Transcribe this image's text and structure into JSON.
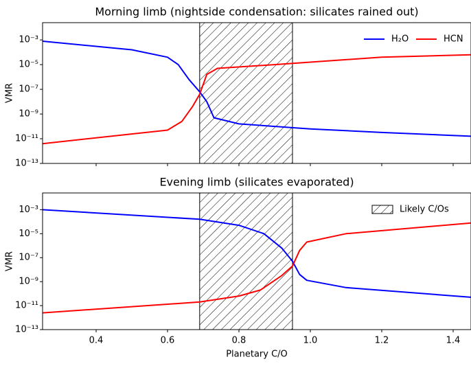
{
  "chart_data": [
    {
      "type": "line",
      "title": "Morning limb (nightside condensation: silicates rained out)",
      "ylabel": "VMR",
      "xlim": [
        0.25,
        1.45
      ],
      "xticks": [
        0.4,
        0.6,
        0.8,
        1.0,
        1.2,
        1.4
      ],
      "show_xtick_labels": false,
      "ylim": [
        1e-13,
        0.025
      ],
      "log_y": true,
      "yticks": [
        {
          "value": 1e-13,
          "label": "10⁻¹³"
        },
        {
          "value": 1e-11,
          "label": "10⁻¹¹"
        },
        {
          "value": 1e-09,
          "label": "10⁻⁹"
        },
        {
          "value": 1e-07,
          "label": "10⁻⁷"
        },
        {
          "value": 1e-05,
          "label": "10⁻⁵"
        },
        {
          "value": 0.001,
          "label": "10⁻³"
        }
      ],
      "shade": {
        "xrange": [
          0.69,
          0.95
        ]
      },
      "legend": "upper right",
      "series": [
        {
          "name": "H₂O",
          "color": "#0000ff",
          "x": [
            0.25,
            0.5,
            0.6,
            0.63,
            0.66,
            0.69,
            0.71,
            0.73,
            0.8,
            1.0,
            1.2,
            1.45
          ],
          "values": [
            0.00079,
            0.00016,
            4e-05,
            1e-05,
            6.3e-07,
            6.3e-08,
            1e-08,
            5e-10,
            1.6e-10,
            6.3e-11,
            3.2e-11,
            1.6e-11
          ]
        },
        {
          "name": "HCN",
          "color": "#ff0000",
          "x": [
            0.25,
            0.6,
            0.64,
            0.67,
            0.69,
            0.71,
            0.74,
            0.9,
            1.2,
            1.45
          ],
          "values": [
            4e-12,
            5e-11,
            2.5e-10,
            4e-09,
            4e-08,
            1.6e-06,
            5e-06,
            1e-05,
            4e-05,
            6.3e-05
          ]
        }
      ]
    },
    {
      "type": "line",
      "title": "Evening limb (silicates evaporated)",
      "ylabel": "VMR",
      "xlabel": "Planetary C/O",
      "xlim": [
        0.25,
        1.45
      ],
      "xticks": [
        0.4,
        0.6,
        0.8,
        1.0,
        1.2,
        1.4
      ],
      "show_xtick_labels": true,
      "ylim": [
        1e-13,
        0.025
      ],
      "log_y": true,
      "yticks": [
        {
          "value": 1e-13,
          "label": "10⁻¹³"
        },
        {
          "value": 1e-11,
          "label": "10⁻¹¹"
        },
        {
          "value": 1e-09,
          "label": "10⁻⁹"
        },
        {
          "value": 1e-07,
          "label": "10⁻⁷"
        },
        {
          "value": 1e-05,
          "label": "10⁻⁵"
        },
        {
          "value": 0.001,
          "label": "10⁻³"
        }
      ],
      "shade": {
        "xrange": [
          0.69,
          0.95
        ],
        "label": "Likely C/Os"
      },
      "legend": "upper right",
      "series": [
        {
          "color": "#0000ff",
          "x": [
            0.25,
            0.69,
            0.8,
            0.87,
            0.92,
            0.95,
            0.97,
            0.99,
            1.1,
            1.45
          ],
          "values": [
            0.001,
            0.00016,
            5e-05,
            1e-05,
            6.3e-07,
            5e-08,
            4e-09,
            1.3e-09,
            3.2e-10,
            5e-11
          ]
        },
        {
          "color": "#ff0000",
          "x": [
            0.25,
            0.69,
            0.8,
            0.86,
            0.92,
            0.95,
            0.97,
            0.99,
            1.1,
            1.45
          ],
          "values": [
            2.5e-12,
            2e-11,
            6.3e-11,
            2e-10,
            3.2e-09,
            2e-08,
            4e-07,
            2e-06,
            1e-05,
            7.9e-05
          ]
        }
      ]
    }
  ]
}
